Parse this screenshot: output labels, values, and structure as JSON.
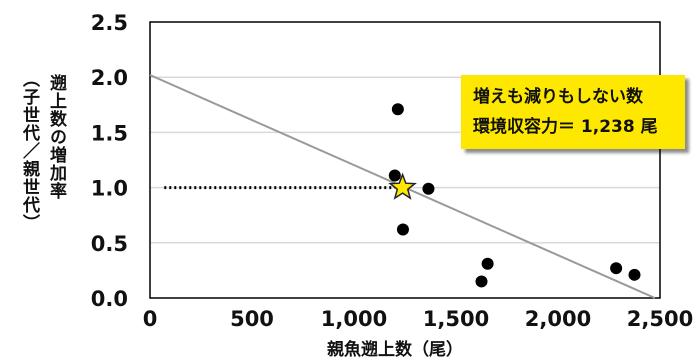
{
  "chart_data": {
    "type": "scatter",
    "xlabel": "親魚遡上数（尾）",
    "ylabel": [
      "遡上数の増加率",
      "（子世代／親世代）"
    ],
    "xlim": [
      0,
      2500
    ],
    "ylim": [
      0,
      2.5
    ],
    "x_ticks": [
      0,
      500,
      1000,
      1500,
      2000,
      2500
    ],
    "x_tick_labels": [
      "0",
      "500",
      "1,000",
      "1,500",
      "2,000",
      "2,500"
    ],
    "y_ticks": [
      0,
      0.5,
      1.0,
      1.5,
      2.0,
      2.5
    ],
    "y_tick_labels": [
      "0.0",
      "0.5",
      "1.0",
      "1.5",
      "2.0",
      "2.5"
    ],
    "grid": "horizontal",
    "points": [
      {
        "x": 1215,
        "y": 1.71
      },
      {
        "x": 1200,
        "y": 1.11
      },
      {
        "x": 1365,
        "y": 0.99
      },
      {
        "x": 1240,
        "y": 0.62
      },
      {
        "x": 1655,
        "y": 0.31
      },
      {
        "x": 1625,
        "y": 0.15
      },
      {
        "x": 2285,
        "y": 0.27
      },
      {
        "x": 2375,
        "y": 0.21
      }
    ],
    "trend_line": {
      "x": [
        0,
        2475
      ],
      "y": [
        2.02,
        0
      ]
    },
    "reference_line": {
      "x": [
        70,
        1238
      ],
      "y": [
        1.0,
        1.0
      ],
      "style": "dotted"
    },
    "highlight_point": {
      "x": 1238,
      "y": 1.0,
      "marker": "star",
      "color": "#FFE800"
    },
    "annotation": {
      "lines": [
        "増えも減りもしない数",
        "環境収容力＝ 1,238 尾"
      ],
      "background": "#FFE800"
    },
    "colors": {
      "points": "#000000",
      "trend": "#9a9a9a",
      "grid": "#d9d9d9",
      "star": "#FFE800"
    }
  }
}
